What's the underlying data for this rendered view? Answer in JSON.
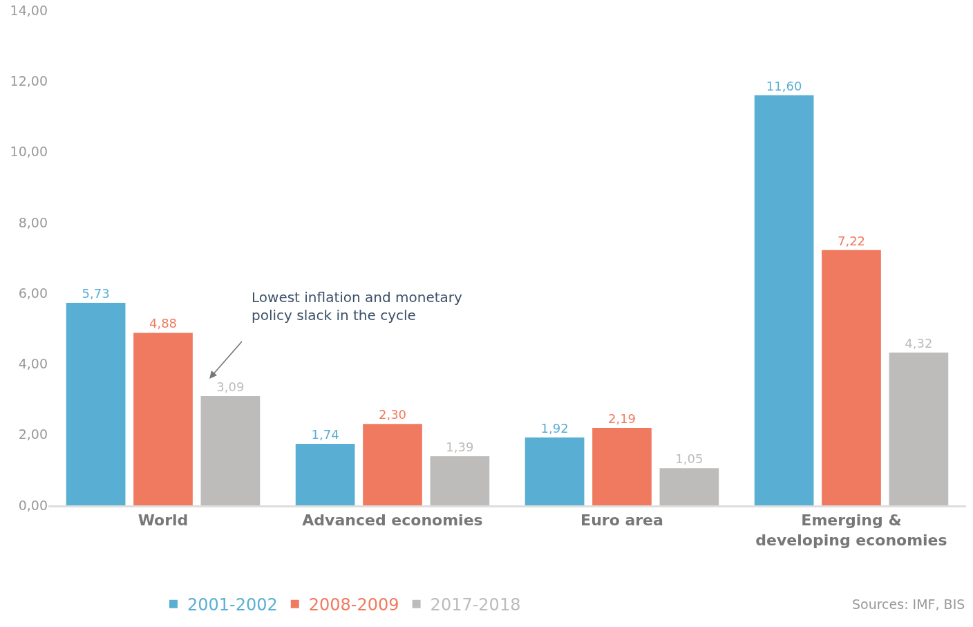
{
  "chart_data": {
    "type": "bar",
    "categories": [
      "World",
      "Advanced economies",
      "Euro area",
      "Emerging & developing economies"
    ],
    "series": [
      {
        "name": "2001-2002",
        "color": "#59afd3",
        "values": [
          5.73,
          1.74,
          1.92,
          11.6
        ],
        "value_labels": [
          "5,73",
          "1,74",
          "1,92",
          "11,60"
        ]
      },
      {
        "name": "2008-2009",
        "color": "#ef7a5f",
        "values": [
          4.88,
          2.3,
          2.19,
          7.22
        ],
        "value_labels": [
          "4,88",
          "2,30",
          "2,19",
          "7,22"
        ]
      },
      {
        "name": "2017-2018",
        "color": "#bdbcbb",
        "values": [
          3.09,
          1.39,
          1.05,
          4.32
        ],
        "value_labels": [
          "3,09",
          "1,39",
          "1,05",
          "4,32"
        ]
      }
    ],
    "ylim": [
      0,
      14
    ],
    "yticks": [
      {
        "value": 0,
        "label": "0,00"
      },
      {
        "value": 2,
        "label": "2,00"
      },
      {
        "value": 4,
        "label": "4,00"
      },
      {
        "value": 6,
        "label": "6,00"
      },
      {
        "value": 8,
        "label": "8,00"
      },
      {
        "value": 10,
        "label": "10,00"
      },
      {
        "value": 12,
        "label": "12,00"
      },
      {
        "value": 14,
        "label": "14,00"
      }
    ],
    "annotations": [
      "Lowest inflation and monetary policy slack in the cycle",
      "Sources: IMF, BIS"
    ],
    "legend": "bottom"
  }
}
